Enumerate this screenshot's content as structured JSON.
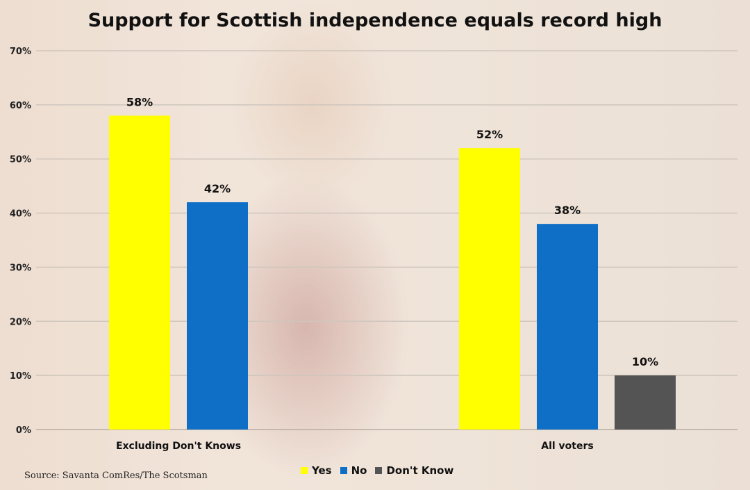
{
  "chart_data": {
    "type": "bar",
    "title": "Support for Scottish independence equals record high",
    "categories": [
      "Excluding Don't Knows",
      "All voters"
    ],
    "series": [
      {
        "name": "Yes",
        "color": "#ffff00",
        "values": [
          58,
          52
        ]
      },
      {
        "name": "No",
        "color": "#0f6fc6",
        "values": [
          42,
          38
        ]
      },
      {
        "name": "Don't Know",
        "color": "#545454",
        "values": [
          null,
          10
        ]
      }
    ],
    "data_labels": [
      [
        "58%",
        "42%",
        null
      ],
      [
        "52%",
        "38%",
        "10%"
      ]
    ],
    "y_ticks": [
      "0%",
      "10%",
      "20%",
      "30%",
      "40%",
      "50%",
      "60%",
      "70%"
    ],
    "ylim": [
      0,
      70
    ],
    "grid": true,
    "legend": {
      "position": "bottom",
      "items": [
        "Yes",
        "No",
        "Don't Know"
      ]
    },
    "source": "Source: Savanta ComRes/The Scotsman"
  }
}
